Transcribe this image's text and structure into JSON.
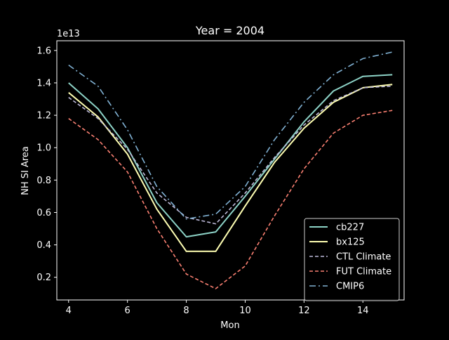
{
  "chart_data": {
    "type": "line",
    "title": "Year = 2004",
    "xlabel": "Mon",
    "ylabel": "NH SI Area",
    "y_offset_label": "1e13",
    "xlim": [
      3.6,
      15.4
    ],
    "ylim": [
      0.06,
      1.66
    ],
    "xticks": [
      4,
      6,
      8,
      10,
      12,
      14
    ],
    "yticks": [
      0.2,
      0.4,
      0.6,
      0.8,
      1.0,
      1.2,
      1.4,
      1.6
    ],
    "legend_position": "lower right",
    "grid": false,
    "x": [
      4,
      5,
      6,
      7,
      8,
      9,
      10,
      11,
      12,
      13,
      14,
      15
    ],
    "series": [
      {
        "name": "cb227",
        "color": "#8dd3c7",
        "style": "solid",
        "values": [
          1.4,
          1.24,
          1.0,
          0.66,
          0.45,
          0.48,
          0.7,
          0.93,
          1.16,
          1.35,
          1.44,
          1.45
        ]
      },
      {
        "name": "bx125",
        "color": "#ffffb3",
        "style": "solid",
        "values": [
          1.34,
          1.19,
          0.96,
          0.62,
          0.36,
          0.36,
          0.64,
          0.91,
          1.12,
          1.28,
          1.37,
          1.39
        ]
      },
      {
        "name": "CTL Climate",
        "color": "#bebada",
        "style": "dashed",
        "values": [
          1.31,
          1.18,
          0.99,
          0.72,
          0.57,
          0.53,
          0.72,
          0.94,
          1.14,
          1.29,
          1.37,
          1.38
        ]
      },
      {
        "name": "FUT Climate",
        "color": "#fb8072",
        "style": "dashed",
        "values": [
          1.18,
          1.05,
          0.85,
          0.5,
          0.22,
          0.13,
          0.27,
          0.58,
          0.87,
          1.09,
          1.2,
          1.23
        ]
      },
      {
        "name": "CMIP6",
        "color": "#80b1d3",
        "style": "dashdot",
        "values": [
          1.51,
          1.38,
          1.11,
          0.76,
          0.56,
          0.59,
          0.76,
          1.05,
          1.28,
          1.45,
          1.55,
          1.59
        ]
      }
    ]
  }
}
